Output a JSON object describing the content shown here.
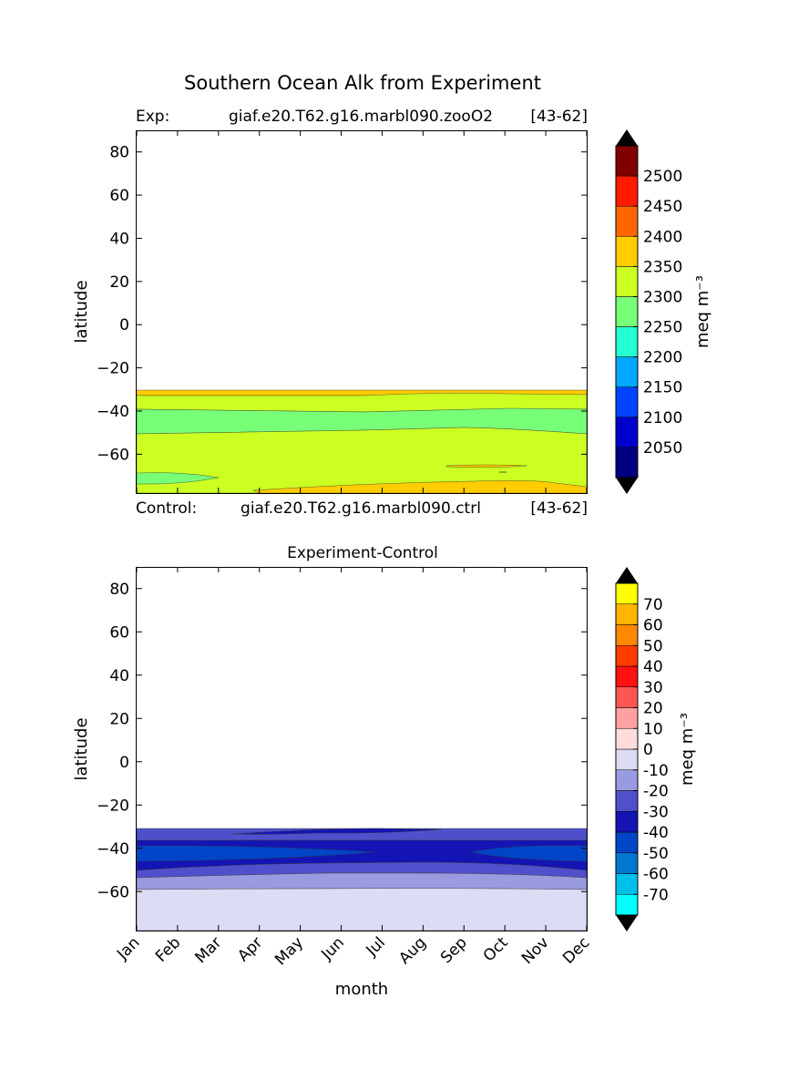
{
  "figure": {
    "title": "Southern Ocean Alk from Experiment",
    "exp_label": "Exp:",
    "exp_name": "giaf.e20.T62.g16.marbl090.zooO2",
    "exp_years": "[43-62]",
    "ctrl_label": "Control:",
    "ctrl_name": "giaf.e20.T62.g16.marbl090.ctrl",
    "ctrl_years": "[43-62]"
  },
  "chart_data": [
    {
      "type": "heatmap",
      "subplot": "experiment",
      "title": "",
      "xlabel": "",
      "ylabel": "latitude",
      "x": [
        "Jan",
        "Feb",
        "Mar",
        "Apr",
        "May",
        "Jun",
        "Jul",
        "Aug",
        "Sep",
        "Oct",
        "Nov",
        "Dec"
      ],
      "xlim": [
        0,
        11
      ],
      "ylim": [
        -78,
        90
      ],
      "yticks": [
        80,
        60,
        40,
        20,
        0,
        -20,
        -40,
        -60
      ],
      "ytick_labels": [
        "80",
        "60",
        "40",
        "20",
        "0",
        "−20",
        "−40",
        "−60"
      ],
      "data_lat_range": [
        -78,
        -31
      ],
      "colorbar": {
        "label": "meq m⁻³",
        "levels": [
          2050,
          2100,
          2150,
          2200,
          2250,
          2300,
          2350,
          2400,
          2450,
          2500
        ],
        "tick_labels": [
          "2050",
          "2100",
          "2150",
          "2200",
          "2250",
          "2300",
          "2350",
          "2400",
          "2450",
          "2500"
        ],
        "colors": [
          "#000080",
          "#0000cd",
          "#0044ff",
          "#00a8ff",
          "#22ffd0",
          "#77ff77",
          "#ccff22",
          "#ffcc00",
          "#ff6600",
          "#ff1a00",
          "#800000"
        ],
        "extend": "both"
      },
      "regions": [
        {
          "level": "2350-2400",
          "lat": [
            -33.5,
            -31.5
          ],
          "months": "Jan-Dec"
        },
        {
          "level": "2300-2350",
          "lat": [
            -40,
            -33.5
          ],
          "months": "Jan-Dec"
        },
        {
          "level": "2250-2300",
          "lat": [
            -51,
            -40
          ],
          "months": "Jan-Dec"
        },
        {
          "level": "2300-2350",
          "lat": [
            -78,
            -51
          ],
          "months": "Jan-Dec"
        },
        {
          "level": "2250-2300",
          "lat": [
            -73,
            -70
          ],
          "months": "Jan-Mar"
        },
        {
          "level": "2350-2400",
          "lat": [
            -78,
            -74
          ],
          "months": "Apr-Dec"
        },
        {
          "level": "2350-2400",
          "lat": [
            -66.5,
            -65.5
          ],
          "months": "Aug-Oct"
        }
      ]
    },
    {
      "type": "heatmap",
      "subplot": "difference",
      "title": "Experiment-Control",
      "xlabel": "month",
      "ylabel": "latitude",
      "x": [
        "Jan",
        "Feb",
        "Mar",
        "Apr",
        "May",
        "Jun",
        "Jul",
        "Aug",
        "Sep",
        "Oct",
        "Nov",
        "Dec"
      ],
      "xlim": [
        0,
        11
      ],
      "ylim": [
        -78,
        90
      ],
      "yticks": [
        80,
        60,
        40,
        20,
        0,
        -20,
        -40,
        -60
      ],
      "ytick_labels": [
        "80",
        "60",
        "40",
        "20",
        "0",
        "−20",
        "−40",
        "−60"
      ],
      "data_lat_range": [
        -78,
        -31
      ],
      "colorbar": {
        "label": "meq m⁻³",
        "levels": [
          -70,
          -60,
          -50,
          -40,
          -30,
          -20,
          -10,
          0,
          10,
          20,
          30,
          40,
          50,
          60,
          70
        ],
        "tick_labels": [
          "-70",
          "-60",
          "-50",
          "-40",
          "-30",
          "-20",
          "-10",
          "0",
          "10",
          "20",
          "30",
          "40",
          "50",
          "60",
          "70"
        ],
        "colors": [
          "#00ffff",
          "#00c0ea",
          "#0077d0",
          "#0044c8",
          "#1414b4",
          "#5050cc",
          "#9a9ae0",
          "#dcdcf4",
          "#ffdcdc",
          "#ffa0a0",
          "#ff5555",
          "#ff1111",
          "#ff3c00",
          "#ff8800",
          "#ffb400",
          "#ffff00"
        ],
        "extend": "both"
      },
      "regions": [
        {
          "level": "-30 to -20",
          "lat": [
            -36,
            -31
          ],
          "months": "Jan-Dec"
        },
        {
          "level": "-40 to -30",
          "lat": [
            -34.5,
            -32.5
          ],
          "months": "May-Aug"
        },
        {
          "level": "-40 to -30",
          "lat": [
            -48,
            -36
          ],
          "months": "Jan-Dec"
        },
        {
          "level": "-50 to -40",
          "lat": [
            -45,
            -39
          ],
          "months": "Jan-Jul, Oct-Dec"
        },
        {
          "level": "-30 to -20",
          "lat": [
            -53,
            -48
          ],
          "months": "Jan-Dec"
        },
        {
          "level": "-20 to -10",
          "lat": [
            -59,
            -53
          ],
          "months": "Jan-Dec"
        },
        {
          "level": "-10 to 0",
          "lat": [
            -78,
            -59
          ],
          "months": "Jan-Dec"
        }
      ]
    }
  ]
}
